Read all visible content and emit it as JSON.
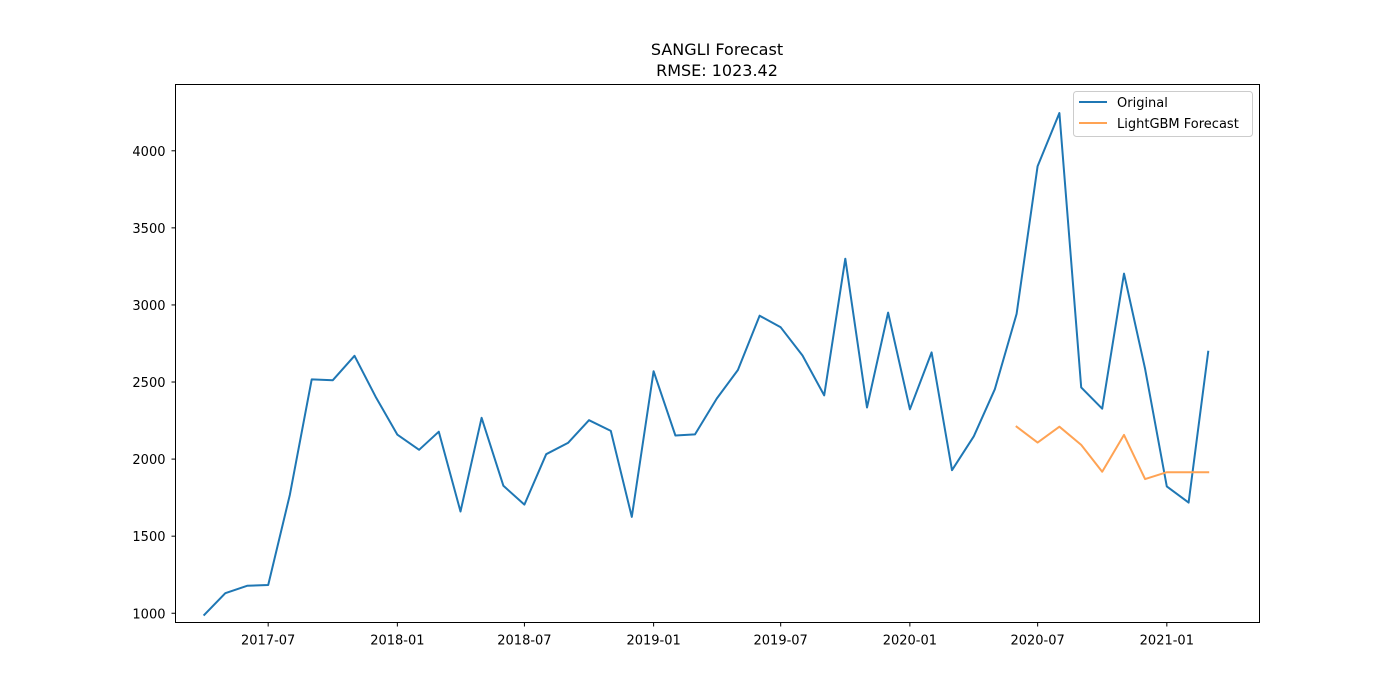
{
  "chart_data": {
    "type": "line",
    "title": "SANGLI Forecast",
    "subtitle": "RMSE: 1023.42",
    "xlabel": "",
    "ylabel": "",
    "x_axis": "date",
    "xlim": [
      "2017-02-19",
      "2021-05-13"
    ],
    "ylim": [
      940,
      4430
    ],
    "grid": false,
    "legend_position": "top-right",
    "x_ticks": [
      "2017-07",
      "2018-01",
      "2018-07",
      "2019-01",
      "2019-07",
      "2020-01",
      "2020-07",
      "2021-01"
    ],
    "y_ticks": [
      1000,
      1500,
      2000,
      2500,
      3000,
      3500,
      4000
    ],
    "series": [
      {
        "name": "Original",
        "color": "#1f77b4",
        "points": [
          [
            "2017-04-01",
            990
          ],
          [
            "2017-05-01",
            1130
          ],
          [
            "2017-06-01",
            1178
          ],
          [
            "2017-07-01",
            1183
          ],
          [
            "2017-08-01",
            1770
          ],
          [
            "2017-09-01",
            2517
          ],
          [
            "2017-10-01",
            2512
          ],
          [
            "2017-11-01",
            2670
          ],
          [
            "2017-12-01",
            2405
          ],
          [
            "2018-01-01",
            2158
          ],
          [
            "2018-02-01",
            2060
          ],
          [
            "2018-03-01",
            2178
          ],
          [
            "2018-04-01",
            1660
          ],
          [
            "2018-05-01",
            2268
          ],
          [
            "2018-06-01",
            1827
          ],
          [
            "2018-07-01",
            1705
          ],
          [
            "2018-08-01",
            2032
          ],
          [
            "2018-09-01",
            2105
          ],
          [
            "2018-10-01",
            2252
          ],
          [
            "2018-11-01",
            2183
          ],
          [
            "2018-12-01",
            1625
          ],
          [
            "2019-01-01",
            2570
          ],
          [
            "2019-02-01",
            2153
          ],
          [
            "2019-03-01",
            2160
          ],
          [
            "2019-04-01",
            2393
          ],
          [
            "2019-05-01",
            2578
          ],
          [
            "2019-06-01",
            2930
          ],
          [
            "2019-07-01",
            2855
          ],
          [
            "2019-08-01",
            2672
          ],
          [
            "2019-09-01",
            2413
          ],
          [
            "2019-10-01",
            3300
          ],
          [
            "2019-11-01",
            2335
          ],
          [
            "2019-12-01",
            2950
          ],
          [
            "2020-01-01",
            2323
          ],
          [
            "2020-02-01",
            2692
          ],
          [
            "2020-03-01",
            1928
          ],
          [
            "2020-04-01",
            2148
          ],
          [
            "2020-05-01",
            2453
          ],
          [
            "2020-06-01",
            2942
          ],
          [
            "2020-07-01",
            3900
          ],
          [
            "2020-08-01",
            4245
          ],
          [
            "2020-09-01",
            2465
          ],
          [
            "2020-10-01",
            2327
          ],
          [
            "2020-11-01",
            3203
          ],
          [
            "2020-12-01",
            2585
          ],
          [
            "2021-01-01",
            1823
          ],
          [
            "2021-02-01",
            1718
          ],
          [
            "2021-03-01",
            2697
          ]
        ]
      },
      {
        "name": "LightGBM Forecast",
        "color": "#ffa354",
        "points": [
          [
            "2020-06-01",
            2210
          ],
          [
            "2020-07-01",
            2107
          ],
          [
            "2020-08-01",
            2210
          ],
          [
            "2020-09-01",
            2092
          ],
          [
            "2020-10-01",
            1918
          ],
          [
            "2020-11-01",
            2157
          ],
          [
            "2020-12-01",
            1870
          ],
          [
            "2021-01-01",
            1915
          ],
          [
            "2021-02-01",
            1915
          ],
          [
            "2021-03-01",
            1915
          ]
        ]
      }
    ]
  }
}
